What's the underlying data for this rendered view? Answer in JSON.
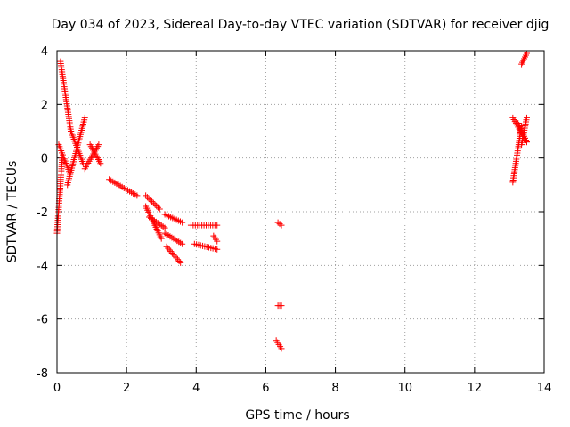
{
  "chart_data": {
    "type": "scatter",
    "title": "Day 034 of 2023, Sidereal Day-to-day VTEC variation (SDTVAR) for receiver djig",
    "xlabel": "GPS time / hours",
    "ylabel": "SDTVAR / TECUs",
    "xlim": [
      0,
      14
    ],
    "ylim": [
      -8,
      4
    ],
    "xticks": [
      "0",
      "2",
      "4",
      "6",
      "8",
      "10",
      "12",
      "14"
    ],
    "yticks": [
      "4",
      "2",
      "0",
      "-2",
      "-4",
      "-6",
      "-8"
    ],
    "grid": true,
    "marker": "+",
    "colors": {
      "series": "#ff0000",
      "grid": "#a0a0a0",
      "axes": "#000000"
    },
    "series": [
      {
        "segments": [
          {
            "x": [
              0.0,
              0.15
            ],
            "y": [
              -2.8,
              0.0
            ]
          },
          {
            "x": [
              0.05,
              0.35
            ],
            "y": [
              0.5,
              -0.5
            ]
          },
          {
            "x": [
              0.1,
              0.4
            ],
            "y": [
              3.6,
              1.0
            ]
          },
          {
            "x": [
              0.4,
              0.75
            ],
            "y": [
              1.0,
              -0.2
            ]
          },
          {
            "x": [
              0.3,
              0.8
            ],
            "y": [
              -1.0,
              1.5
            ]
          },
          {
            "x": [
              0.8,
              1.2
            ],
            "y": [
              -0.4,
              0.5
            ]
          },
          {
            "x": [
              0.95,
              1.25
            ],
            "y": [
              0.5,
              -0.2
            ]
          },
          {
            "x": [
              1.5,
              2.3
            ],
            "y": [
              -0.8,
              -1.4
            ]
          },
          {
            "x": [
              2.55,
              2.95
            ],
            "y": [
              -1.4,
              -1.9
            ]
          },
          {
            "x": [
              2.55,
              3.0
            ],
            "y": [
              -1.8,
              -3.0
            ]
          },
          {
            "x": [
              2.65,
              3.1
            ],
            "y": [
              -2.2,
              -2.6
            ]
          },
          {
            "x": [
              3.1,
              3.6
            ],
            "y": [
              -2.1,
              -2.4
            ]
          },
          {
            "x": [
              3.1,
              3.6
            ],
            "y": [
              -2.8,
              -3.2
            ]
          },
          {
            "x": [
              3.15,
              3.55
            ],
            "y": [
              -3.3,
              -3.9
            ]
          },
          {
            "x": [
              3.95,
              4.6
            ],
            "y": [
              -3.2,
              -3.4
            ]
          },
          {
            "x": [
              3.85,
              4.6
            ],
            "y": [
              -2.5,
              -2.5
            ]
          },
          {
            "x": [
              4.5,
              4.6
            ],
            "y": [
              -2.9,
              -3.1
            ]
          },
          {
            "x": [
              6.35,
              6.45
            ],
            "y": [
              -2.4,
              -2.5
            ]
          },
          {
            "x": [
              6.35,
              6.45
            ],
            "y": [
              -5.5,
              -5.5
            ]
          },
          {
            "x": [
              6.3,
              6.45
            ],
            "y": [
              -6.8,
              -7.1
            ]
          },
          {
            "x": [
              13.1,
              13.35
            ],
            "y": [
              -0.9,
              1.2
            ]
          },
          {
            "x": [
              13.1,
              13.5
            ],
            "y": [
              1.5,
              0.6
            ]
          },
          {
            "x": [
              13.25,
              13.5
            ],
            "y": [
              1.3,
              0.6
            ]
          },
          {
            "x": [
              13.5,
              13.35
            ],
            "y": [
              1.5,
              0.5
            ]
          },
          {
            "x": [
              13.35,
              13.5
            ],
            "y": [
              3.5,
              3.9
            ]
          }
        ]
      }
    ]
  }
}
